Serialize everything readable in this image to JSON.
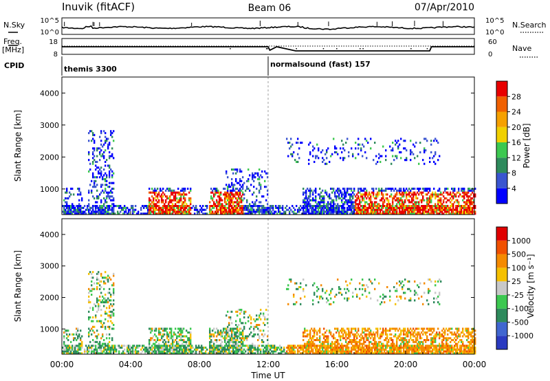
{
  "header": {
    "station": "Inuvik (fitACF)",
    "beam": "Beam 06",
    "date": "07/Apr/2010"
  },
  "top_panel": {
    "nsky_label": "N.Sky",
    "left_ticks": [
      "10^5",
      "10^0"
    ],
    "right_ticks": [
      "10^5",
      "10^0"
    ],
    "nsearch_label": "N.Search"
  },
  "freq_panel": {
    "freq_label": "Freq.",
    "unit_label": "[MHz]",
    "left_ticks": [
      "18",
      "8"
    ],
    "right_ticks": [
      "60",
      "0"
    ],
    "nave_label": "Nave"
  },
  "cpid_row": {
    "cpid_label": "CPID",
    "programs": [
      {
        "name": "themis 3300",
        "start_hour": 0
      },
      {
        "name": "normalsound (fast) 157",
        "start_hour": 12
      }
    ]
  },
  "time_axis": {
    "label": "Time UT",
    "ticks": [
      "00:00",
      "04:00",
      "08:00",
      "12:00",
      "16:00",
      "20:00",
      "00:00"
    ]
  },
  "chart_data": [
    {
      "type": "heatmap",
      "ylabel": "Slant Range [km]",
      "ylim": [
        200,
        4500
      ],
      "yticks": [
        "1000",
        "2000",
        "3000",
        "4000"
      ],
      "xlim_hours": [
        0,
        24
      ],
      "colorbar": {
        "label": "Power [dB]",
        "ticks": [
          "28",
          "24",
          "20",
          "16",
          "12",
          "8",
          "4"
        ],
        "colors": [
          "#0000ff",
          "#3a55d0",
          "#2e8a5c",
          "#3cc850",
          "#f0d000",
          "#f5a000",
          "#f06000",
          "#e80000"
        ]
      }
    },
    {
      "type": "heatmap",
      "ylabel": "Slant Range [km]",
      "ylim": [
        200,
        4500
      ],
      "yticks": [
        "1000",
        "2000",
        "3000",
        "4000"
      ],
      "xlim_hours": [
        0,
        24
      ],
      "colorbar": {
        "label": "Velocity [m s⁻¹]",
        "ticks": [
          "1000",
          "500",
          "100",
          "25",
          "-25",
          "-100",
          "-500",
          "-1000"
        ],
        "colors": [
          "#2a3ac0",
          "#4066d0",
          "#2e8a5c",
          "#3cc850",
          "#c8c8c8",
          "#f5c000",
          "#f58a00",
          "#f05000",
          "#e00000"
        ]
      }
    }
  ]
}
